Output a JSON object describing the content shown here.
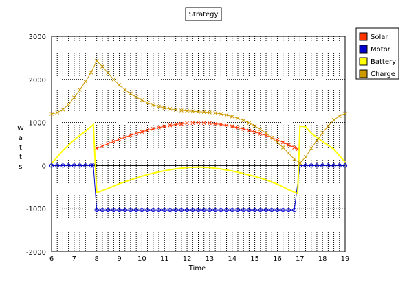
{
  "chart_data": {
    "type": "line",
    "title": "Strategy",
    "xlabel": "Time",
    "ylabel": "Watts",
    "xlim": [
      6,
      19
    ],
    "ylim": [
      -2000,
      3000
    ],
    "xticks": [
      6,
      7,
      8,
      9,
      10,
      11,
      12,
      13,
      14,
      15,
      16,
      17,
      18,
      19
    ],
    "yticks": [
      -2000,
      -1000,
      0,
      1000,
      2000,
      3000
    ],
    "grid": true,
    "legend_position": "top-right",
    "series": [
      {
        "name": "Solar",
        "color": "#ff3300",
        "marker": "x",
        "points": [
          [
            8.0,
            400
          ],
          [
            8.25,
            450
          ],
          [
            8.5,
            510
          ],
          [
            8.75,
            560
          ],
          [
            9.0,
            610
          ],
          [
            9.25,
            660
          ],
          [
            9.5,
            705
          ],
          [
            9.75,
            745
          ],
          [
            10.0,
            785
          ],
          [
            10.25,
            820
          ],
          [
            10.5,
            855
          ],
          [
            10.75,
            885
          ],
          [
            11.0,
            910
          ],
          [
            11.25,
            935
          ],
          [
            11.5,
            955
          ],
          [
            11.75,
            970
          ],
          [
            12.0,
            985
          ],
          [
            12.25,
            990
          ],
          [
            12.5,
            995
          ],
          [
            12.75,
            990
          ],
          [
            13.0,
            985
          ],
          [
            13.25,
            970
          ],
          [
            13.5,
            955
          ],
          [
            13.75,
            935
          ],
          [
            14.0,
            910
          ],
          [
            14.25,
            880
          ],
          [
            14.5,
            850
          ],
          [
            14.75,
            815
          ],
          [
            15.0,
            780
          ],
          [
            15.25,
            740
          ],
          [
            15.5,
            700
          ],
          [
            15.75,
            650
          ],
          [
            16.0,
            600
          ],
          [
            16.25,
            540
          ],
          [
            16.5,
            480
          ],
          [
            16.75,
            420
          ],
          [
            16.9,
            380
          ]
        ]
      },
      {
        "name": "Motor",
        "color": "#0000cc",
        "marker": "o",
        "points": [
          [
            6.0,
            0
          ],
          [
            6.25,
            0
          ],
          [
            6.5,
            0
          ],
          [
            6.75,
            0
          ],
          [
            7.0,
            0
          ],
          [
            7.25,
            0
          ],
          [
            7.5,
            0
          ],
          [
            7.75,
            0
          ],
          [
            7.85,
            0
          ],
          [
            8.0,
            -1030
          ],
          [
            8.25,
            -1030
          ],
          [
            8.5,
            -1030
          ],
          [
            8.75,
            -1030
          ],
          [
            9.0,
            -1030
          ],
          [
            9.25,
            -1030
          ],
          [
            9.5,
            -1030
          ],
          [
            9.75,
            -1030
          ],
          [
            10.0,
            -1030
          ],
          [
            10.25,
            -1030
          ],
          [
            10.5,
            -1030
          ],
          [
            10.75,
            -1030
          ],
          [
            11.0,
            -1030
          ],
          [
            11.25,
            -1030
          ],
          [
            11.5,
            -1030
          ],
          [
            11.75,
            -1030
          ],
          [
            12.0,
            -1030
          ],
          [
            12.25,
            -1030
          ],
          [
            12.5,
            -1030
          ],
          [
            12.75,
            -1030
          ],
          [
            13.0,
            -1030
          ],
          [
            13.25,
            -1030
          ],
          [
            13.5,
            -1030
          ],
          [
            13.75,
            -1030
          ],
          [
            14.0,
            -1030
          ],
          [
            14.25,
            -1030
          ],
          [
            14.5,
            -1030
          ],
          [
            14.75,
            -1030
          ],
          [
            15.0,
            -1030
          ],
          [
            15.25,
            -1030
          ],
          [
            15.5,
            -1030
          ],
          [
            15.75,
            -1030
          ],
          [
            16.0,
            -1030
          ],
          [
            16.25,
            -1030
          ],
          [
            16.5,
            -1030
          ],
          [
            16.75,
            -1030
          ],
          [
            17.0,
            0
          ],
          [
            17.25,
            0
          ],
          [
            17.5,
            0
          ],
          [
            17.75,
            0
          ],
          [
            18.0,
            0
          ],
          [
            18.25,
            0
          ],
          [
            18.5,
            0
          ],
          [
            18.75,
            0
          ],
          [
            19.0,
            0
          ]
        ]
      },
      {
        "name": "Battery",
        "color": "#ffff00",
        "marker": "none",
        "points": [
          [
            6.0,
            50
          ],
          [
            6.5,
            350
          ],
          [
            7.0,
            600
          ],
          [
            7.5,
            800
          ],
          [
            7.85,
            950
          ],
          [
            8.0,
            -630
          ],
          [
            8.5,
            -530
          ],
          [
            9.0,
            -420
          ],
          [
            9.5,
            -330
          ],
          [
            10.0,
            -245
          ],
          [
            10.5,
            -175
          ],
          [
            11.0,
            -120
          ],
          [
            11.5,
            -75
          ],
          [
            12.0,
            -45
          ],
          [
            12.5,
            -35
          ],
          [
            13.0,
            -45
          ],
          [
            13.5,
            -80
          ],
          [
            14.0,
            -125
          ],
          [
            14.5,
            -185
          ],
          [
            15.0,
            -250
          ],
          [
            15.5,
            -330
          ],
          [
            16.0,
            -430
          ],
          [
            16.5,
            -560
          ],
          [
            16.9,
            -650
          ],
          [
            17.0,
            920
          ],
          [
            17.25,
            900
          ],
          [
            17.5,
            750
          ],
          [
            18.0,
            560
          ],
          [
            18.5,
            380
          ],
          [
            19.0,
            80
          ]
        ]
      },
      {
        "name": "Charge",
        "color": "#cc9900",
        "marker": "x",
        "points": [
          [
            6.0,
            1200
          ],
          [
            6.25,
            1230
          ],
          [
            6.5,
            1300
          ],
          [
            6.75,
            1420
          ],
          [
            7.0,
            1580
          ],
          [
            7.25,
            1760
          ],
          [
            7.5,
            1950
          ],
          [
            7.75,
            2160
          ],
          [
            8.0,
            2430
          ],
          [
            8.25,
            2300
          ],
          [
            8.5,
            2150
          ],
          [
            8.75,
            2000
          ],
          [
            9.0,
            1870
          ],
          [
            9.25,
            1760
          ],
          [
            9.5,
            1670
          ],
          [
            9.75,
            1590
          ],
          [
            10.0,
            1520
          ],
          [
            10.25,
            1460
          ],
          [
            10.5,
            1410
          ],
          [
            10.75,
            1370
          ],
          [
            11.0,
            1340
          ],
          [
            11.25,
            1315
          ],
          [
            11.5,
            1295
          ],
          [
            11.75,
            1280
          ],
          [
            12.0,
            1270
          ],
          [
            12.25,
            1260
          ],
          [
            12.5,
            1250
          ],
          [
            12.75,
            1245
          ],
          [
            13.0,
            1235
          ],
          [
            13.25,
            1220
          ],
          [
            13.5,
            1200
          ],
          [
            13.75,
            1175
          ],
          [
            14.0,
            1140
          ],
          [
            14.25,
            1100
          ],
          [
            14.5,
            1050
          ],
          [
            14.75,
            990
          ],
          [
            15.0,
            920
          ],
          [
            15.25,
            840
          ],
          [
            15.5,
            750
          ],
          [
            15.75,
            650
          ],
          [
            16.0,
            540
          ],
          [
            16.25,
            420
          ],
          [
            16.5,
            290
          ],
          [
            16.75,
            150
          ],
          [
            17.0,
            60
          ],
          [
            17.25,
            200
          ],
          [
            17.5,
            400
          ],
          [
            17.75,
            580
          ],
          [
            18.0,
            760
          ],
          [
            18.25,
            920
          ],
          [
            18.5,
            1060
          ],
          [
            18.75,
            1150
          ],
          [
            19.0,
            1210
          ]
        ]
      }
    ]
  }
}
